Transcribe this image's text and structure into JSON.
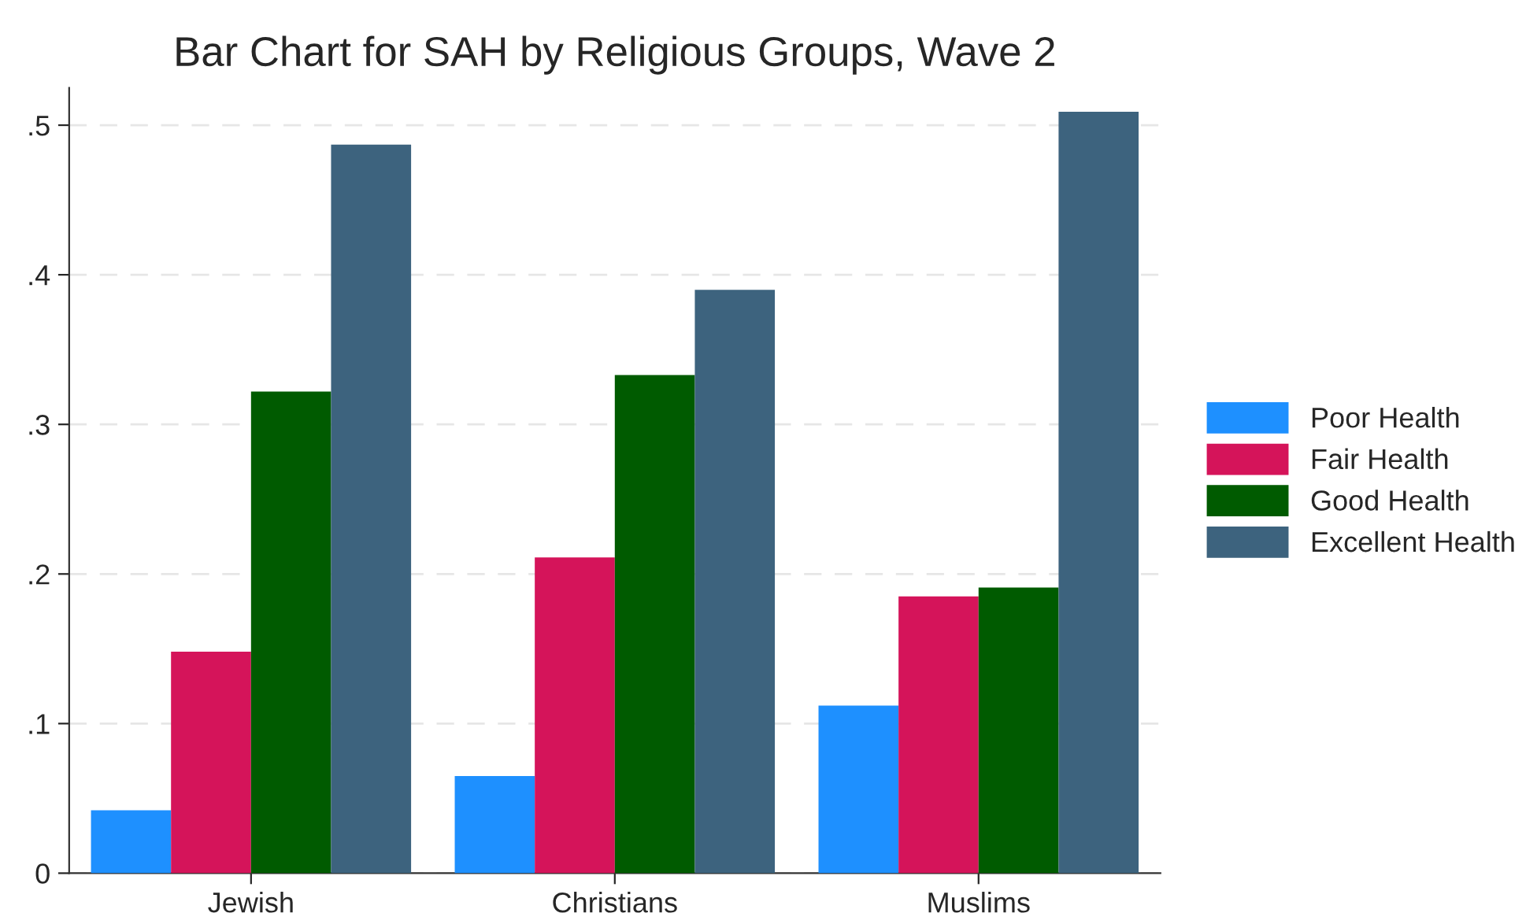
{
  "chart_data": {
    "type": "bar",
    "title": "Bar Chart for SAH by Religious Groups, Wave 2",
    "categories": [
      "Jewish",
      "Christians",
      "Muslims"
    ],
    "series": [
      {
        "name": "Poor Health",
        "color": "#1e90ff",
        "values": [
          0.042,
          0.065,
          0.112
        ]
      },
      {
        "name": "Fair Health",
        "color": "#d5145a",
        "values": [
          0.148,
          0.211,
          0.185
        ]
      },
      {
        "name": "Good Health",
        "color": "#005b00",
        "values": [
          0.322,
          0.333,
          0.191
        ]
      },
      {
        "name": "Excellent Health",
        "color": "#3d637e",
        "values": [
          0.487,
          0.39,
          0.509
        ]
      }
    ],
    "ylim": [
      0,
      0.525
    ],
    "yticks": [
      {
        "value": 0,
        "label": "0"
      },
      {
        "value": 0.1,
        "label": ".1"
      },
      {
        "value": 0.2,
        "label": ".2"
      },
      {
        "value": 0.3,
        "label": ".3"
      },
      {
        "value": 0.4,
        "label": ".4"
      },
      {
        "value": 0.5,
        "label": ".5"
      }
    ],
    "grid": "y",
    "legend": "right"
  }
}
